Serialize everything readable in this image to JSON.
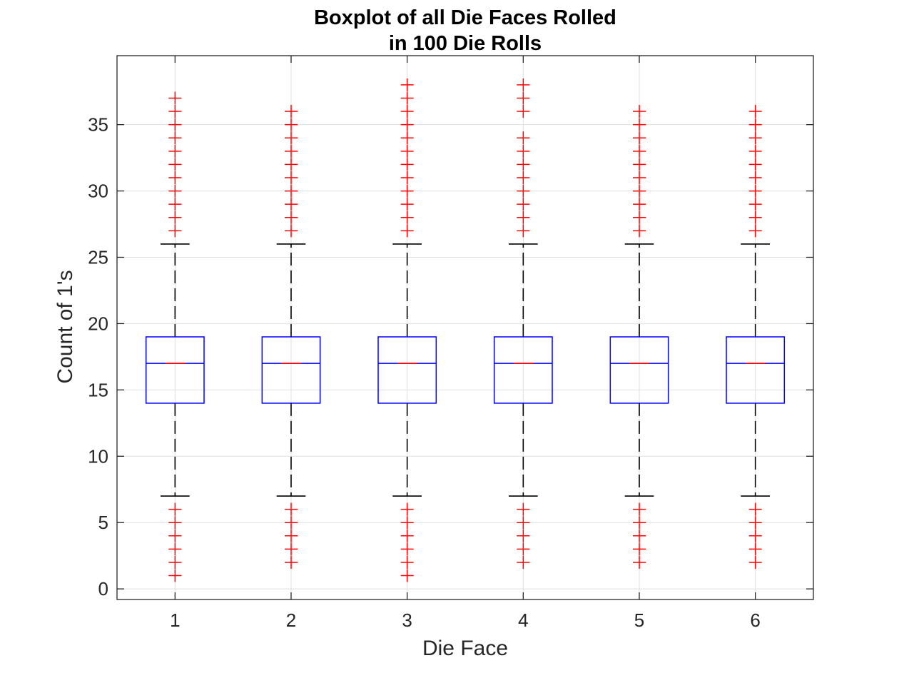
{
  "chart_data": {
    "type": "boxplot",
    "title_lines": [
      "Boxplot of all Die Faces Rolled",
      "in 100 Die Rolls"
    ],
    "xlabel": "Die Face",
    "ylabel": "Count of 1's",
    "categories": [
      "1",
      "2",
      "3",
      "4",
      "5",
      "6"
    ],
    "ylim": [
      -0.8,
      40.2
    ],
    "yticks": [
      0,
      5,
      10,
      15,
      20,
      25,
      30,
      35
    ],
    "grid": true,
    "colors": {
      "box": "#0000ff",
      "median": "#ff0000",
      "whisker": "#000000",
      "outlier": "#ff0000",
      "grid": "#dfdfdf",
      "axes": "#262626"
    },
    "series": [
      {
        "category": "1",
        "q1": 14,
        "median": 17,
        "q3": 19,
        "whisker_low": 7,
        "whisker_high": 26,
        "outliers": [
          1,
          2,
          3,
          4,
          5,
          6,
          27,
          28,
          29,
          30,
          31,
          32,
          33,
          34,
          35,
          36,
          37
        ]
      },
      {
        "category": "2",
        "q1": 14,
        "median": 17,
        "q3": 19,
        "whisker_low": 7,
        "whisker_high": 26,
        "outliers": [
          2,
          3,
          4,
          5,
          6,
          27,
          28,
          29,
          30,
          31,
          32,
          33,
          34,
          35,
          36
        ]
      },
      {
        "category": "3",
        "q1": 14,
        "median": 17,
        "q3": 19,
        "whisker_low": 7,
        "whisker_high": 26,
        "outliers": [
          1,
          2,
          3,
          4,
          5,
          6,
          27,
          28,
          29,
          30,
          31,
          32,
          33,
          34,
          35,
          36,
          37,
          38
        ]
      },
      {
        "category": "4",
        "q1": 14,
        "median": 17,
        "q3": 19,
        "whisker_low": 7,
        "whisker_high": 26,
        "outliers": [
          2,
          3,
          4,
          5,
          6,
          27,
          28,
          29,
          30,
          31,
          32,
          33,
          34,
          36,
          37,
          38
        ]
      },
      {
        "category": "5",
        "q1": 14,
        "median": 17,
        "q3": 19,
        "whisker_low": 7,
        "whisker_high": 26,
        "outliers": [
          2,
          3,
          4,
          5,
          6,
          27,
          28,
          29,
          30,
          31,
          32,
          33,
          34,
          35,
          36
        ]
      },
      {
        "category": "6",
        "q1": 14,
        "median": 17,
        "q3": 19,
        "whisker_low": 7,
        "whisker_high": 26,
        "outliers": [
          2,
          3,
          4,
          5,
          6,
          27,
          28,
          29,
          30,
          31,
          32,
          33,
          34,
          35,
          36
        ]
      }
    ]
  }
}
